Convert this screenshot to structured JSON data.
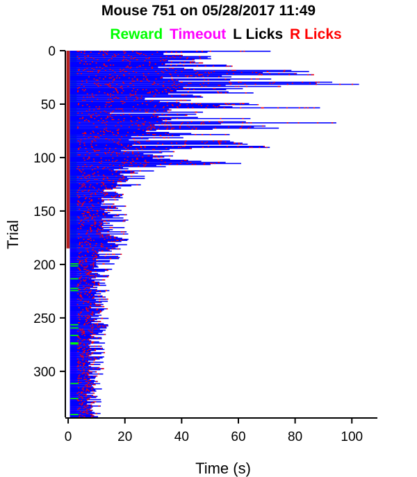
{
  "chart_data": {
    "type": "raster",
    "title": "Mouse 751 on 05/28/2017 11:49",
    "legend": [
      {
        "label": "Reward",
        "color": "#00ff00"
      },
      {
        "label": "Timeout",
        "color": "#ff00ff"
      },
      {
        "label": "L Licks",
        "color": "#000000"
      },
      {
        "label": "R Licks",
        "color": "#ff0000"
      }
    ],
    "xlabel": "Time (s)",
    "ylabel": "Trial",
    "xlim": [
      -1,
      109
    ],
    "ylim": [
      343,
      0
    ],
    "x_ticks": [
      0,
      20,
      40,
      60,
      80,
      100
    ],
    "y_ticks": [
      0,
      50,
      100,
      150,
      200,
      250,
      300
    ],
    "trial_line_color": "#0000ff",
    "n_trials": 343,
    "outcome_blocks": [
      {
        "from_trial": 0,
        "to_trial": 185,
        "outcome": "Reward"
      },
      {
        "from_trial": 185,
        "to_trial": 343,
        "outcome": "Timeout"
      }
    ],
    "trial_end_profile": [
      {
        "trial": 0,
        "end_s": 69
      },
      {
        "trial": 3,
        "end_s": 45
      },
      {
        "trial": 6,
        "end_s": 78
      },
      {
        "trial": 10,
        "end_s": 65
      },
      {
        "trial": 16,
        "end_s": 70
      },
      {
        "trial": 20,
        "end_s": 80
      },
      {
        "trial": 28,
        "end_s": 80
      },
      {
        "trial": 33,
        "end_s": 108
      },
      {
        "trial": 37,
        "end_s": 55
      },
      {
        "trial": 40,
        "end_s": 62
      },
      {
        "trial": 48,
        "end_s": 52
      },
      {
        "trial": 53,
        "end_s": 82
      },
      {
        "trial": 58,
        "end_s": 37
      },
      {
        "trial": 62,
        "end_s": 55
      },
      {
        "trial": 67,
        "end_s": 90
      },
      {
        "trial": 70,
        "end_s": 73
      },
      {
        "trial": 75,
        "end_s": 62
      },
      {
        "trial": 82,
        "end_s": 47
      },
      {
        "trial": 90,
        "end_s": 67
      },
      {
        "trial": 95,
        "end_s": 33
      },
      {
        "trial": 100,
        "end_s": 43
      },
      {
        "trial": 105,
        "end_s": 64
      },
      {
        "trial": 110,
        "end_s": 44
      },
      {
        "trial": 115,
        "end_s": 25
      },
      {
        "trial": 125,
        "end_s": 25
      },
      {
        "trial": 140,
        "end_s": 17
      },
      {
        "trial": 150,
        "end_s": 22
      },
      {
        "trial": 165,
        "end_s": 20
      },
      {
        "trial": 180,
        "end_s": 21
      },
      {
        "trial": 190,
        "end_s": 18
      },
      {
        "trial": 210,
        "end_s": 14
      },
      {
        "trial": 250,
        "end_s": 14
      },
      {
        "trial": 300,
        "end_s": 12
      },
      {
        "trial": 343,
        "end_s": 11
      }
    ]
  }
}
